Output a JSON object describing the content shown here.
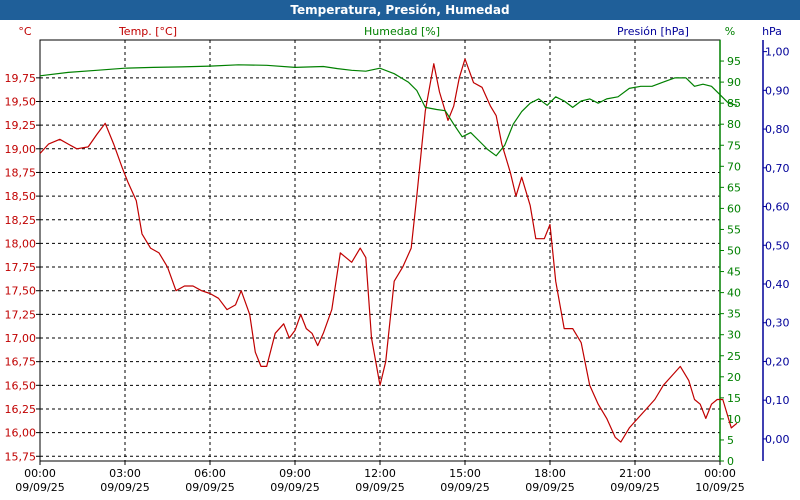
{
  "chart_data": {
    "type": "line",
    "title": "Temperatura, Presión, Humedad",
    "colors": {
      "temp": "#c00000",
      "hum": "#008000",
      "pres": "#000099",
      "grid": "#000000",
      "title_bg": "#1f5f99"
    },
    "grid": true,
    "axes": {
      "temp": {
        "unit": "°C",
        "label": "Temp. [°C]",
        "ylim": [
          15.7,
          20.15
        ],
        "ticks": [
          "15,75",
          "16,00",
          "16,25",
          "16,50",
          "16,75",
          "17,00",
          "17,25",
          "17,50",
          "17,75",
          "18,00",
          "18,25",
          "18,50",
          "18,75",
          "19,00",
          "19,25",
          "19,50",
          "19,75"
        ]
      },
      "hum": {
        "unit": "%",
        "label": "Humedad [%]",
        "ylim": [
          0,
          100
        ],
        "ticks": [
          "0",
          "5",
          "10",
          "15",
          "20",
          "25",
          "30",
          "35",
          "40",
          "45",
          "50",
          "55",
          "60",
          "65",
          "70",
          "75",
          "80",
          "85",
          "90",
          "95"
        ]
      },
      "pres": {
        "unit": "hPa",
        "label": "Presión [hPa]",
        "ylim": [
          -0.057,
          1.03
        ],
        "ticks": [
          "0,00",
          "0,10",
          "0,20",
          "0,30",
          "0,40",
          "0,50",
          "0,60",
          "0,70",
          "0,80",
          "0,90",
          "1,00"
        ]
      }
    },
    "x_ticks": [
      {
        "time": "00:00",
        "date": "09/09/25"
      },
      {
        "time": "03:00",
        "date": "09/09/25"
      },
      {
        "time": "06:00",
        "date": "09/09/25"
      },
      {
        "time": "09:00",
        "date": "09/09/25"
      },
      {
        "time": "12:00",
        "date": "09/09/25"
      },
      {
        "time": "15:00",
        "date": "09/09/25"
      },
      {
        "time": "18:00",
        "date": "09/09/25"
      },
      {
        "time": "21:00",
        "date": "09/09/25"
      },
      {
        "time": "00:00",
        "date": "10/09/25"
      }
    ],
    "x_range_hours": [
      0,
      24
    ],
    "series": [
      {
        "name": "Temp. [°C]",
        "axis": "temp",
        "points": [
          [
            0.0,
            18.95
          ],
          [
            0.3,
            19.05
          ],
          [
            0.7,
            19.1
          ],
          [
            1.0,
            19.05
          ],
          [
            1.3,
            19.0
          ],
          [
            1.7,
            19.02
          ],
          [
            2.0,
            19.15
          ],
          [
            2.3,
            19.27
          ],
          [
            2.6,
            19.05
          ],
          [
            2.9,
            18.8
          ],
          [
            3.1,
            18.65
          ],
          [
            3.4,
            18.45
          ],
          [
            3.6,
            18.1
          ],
          [
            3.9,
            17.95
          ],
          [
            4.2,
            17.9
          ],
          [
            4.5,
            17.75
          ],
          [
            4.8,
            17.5
          ],
          [
            5.1,
            17.55
          ],
          [
            5.4,
            17.55
          ],
          [
            5.7,
            17.5
          ],
          [
            6.0,
            17.47
          ],
          [
            6.3,
            17.42
          ],
          [
            6.6,
            17.3
          ],
          [
            6.9,
            17.35
          ],
          [
            7.1,
            17.5
          ],
          [
            7.4,
            17.25
          ],
          [
            7.6,
            16.85
          ],
          [
            7.8,
            16.7
          ],
          [
            8.0,
            16.7
          ],
          [
            8.3,
            17.05
          ],
          [
            8.6,
            17.15
          ],
          [
            8.8,
            17.0
          ],
          [
            9.0,
            17.08
          ],
          [
            9.2,
            17.25
          ],
          [
            9.4,
            17.1
          ],
          [
            9.6,
            17.05
          ],
          [
            9.8,
            16.92
          ],
          [
            10.0,
            17.05
          ],
          [
            10.3,
            17.3
          ],
          [
            10.6,
            17.9
          ],
          [
            11.0,
            17.8
          ],
          [
            11.3,
            17.95
          ],
          [
            11.5,
            17.85
          ],
          [
            11.7,
            17.0
          ],
          [
            12.0,
            16.5
          ],
          [
            12.2,
            16.75
          ],
          [
            12.5,
            17.6
          ],
          [
            12.8,
            17.75
          ],
          [
            13.1,
            17.95
          ],
          [
            13.3,
            18.5
          ],
          [
            13.6,
            19.4
          ],
          [
            13.9,
            19.9
          ],
          [
            14.1,
            19.6
          ],
          [
            14.4,
            19.3
          ],
          [
            14.6,
            19.45
          ],
          [
            14.8,
            19.75
          ],
          [
            15.0,
            19.95
          ],
          [
            15.3,
            19.7
          ],
          [
            15.6,
            19.65
          ],
          [
            15.9,
            19.45
          ],
          [
            16.1,
            19.35
          ],
          [
            16.3,
            19.05
          ],
          [
            16.6,
            18.75
          ],
          [
            16.8,
            18.5
          ],
          [
            17.0,
            18.7
          ],
          [
            17.3,
            18.4
          ],
          [
            17.5,
            18.05
          ],
          [
            17.8,
            18.05
          ],
          [
            18.0,
            18.2
          ],
          [
            18.2,
            17.6
          ],
          [
            18.5,
            17.1
          ],
          [
            18.8,
            17.1
          ],
          [
            19.1,
            16.95
          ],
          [
            19.4,
            16.5
          ],
          [
            19.7,
            16.3
          ],
          [
            20.0,
            16.15
          ],
          [
            20.3,
            15.95
          ],
          [
            20.5,
            15.9
          ],
          [
            20.8,
            16.05
          ],
          [
            21.1,
            16.15
          ],
          [
            21.4,
            16.25
          ],
          [
            21.7,
            16.35
          ],
          [
            22.0,
            16.5
          ],
          [
            22.3,
            16.6
          ],
          [
            22.6,
            16.7
          ],
          [
            22.9,
            16.55
          ],
          [
            23.1,
            16.35
          ],
          [
            23.3,
            16.3
          ],
          [
            23.5,
            16.15
          ],
          [
            23.7,
            16.3
          ],
          [
            23.9,
            16.35
          ],
          [
            24.1,
            16.35
          ],
          [
            24.4,
            16.05
          ],
          [
            24.6,
            16.1
          ]
        ]
      },
      {
        "name": "Humedad [%]",
        "axis": "hum",
        "points": [
          [
            0.0,
            91.5
          ],
          [
            1.0,
            92.3
          ],
          [
            2.0,
            92.8
          ],
          [
            3.0,
            93.3
          ],
          [
            4.0,
            93.5
          ],
          [
            5.0,
            93.6
          ],
          [
            6.0,
            93.8
          ],
          [
            7.0,
            94.1
          ],
          [
            8.0,
            94.0
          ],
          [
            9.0,
            93.5
          ],
          [
            10.0,
            93.7
          ],
          [
            10.5,
            93.2
          ],
          [
            11.0,
            92.8
          ],
          [
            11.5,
            92.6
          ],
          [
            12.0,
            93.3
          ],
          [
            12.5,
            92.0
          ],
          [
            13.0,
            90.0
          ],
          [
            13.3,
            88.0
          ],
          [
            13.6,
            84.0
          ],
          [
            14.0,
            83.5
          ],
          [
            14.3,
            83.2
          ],
          [
            14.6,
            80.0
          ],
          [
            14.9,
            77.0
          ],
          [
            15.2,
            78.0
          ],
          [
            15.5,
            76.0
          ],
          [
            15.8,
            74.0
          ],
          [
            16.1,
            72.5
          ],
          [
            16.4,
            75.0
          ],
          [
            16.7,
            80.0
          ],
          [
            17.0,
            83.0
          ],
          [
            17.3,
            85.0
          ],
          [
            17.6,
            86.0
          ],
          [
            17.9,
            84.5
          ],
          [
            18.2,
            86.5
          ],
          [
            18.5,
            85.5
          ],
          [
            18.8,
            84.0
          ],
          [
            19.1,
            85.5
          ],
          [
            19.4,
            86.0
          ],
          [
            19.7,
            85.0
          ],
          [
            20.0,
            86.0
          ],
          [
            20.4,
            86.5
          ],
          [
            20.8,
            88.5
          ],
          [
            21.2,
            89.0
          ],
          [
            21.6,
            89.0
          ],
          [
            22.0,
            90.0
          ],
          [
            22.4,
            91.0
          ],
          [
            22.8,
            91.0
          ],
          [
            23.1,
            89.0
          ],
          [
            23.4,
            89.5
          ],
          [
            23.7,
            89.0
          ],
          [
            24.0,
            87.0
          ],
          [
            24.3,
            85.0
          ],
          [
            24.6,
            84.5
          ]
        ]
      }
    ]
  }
}
